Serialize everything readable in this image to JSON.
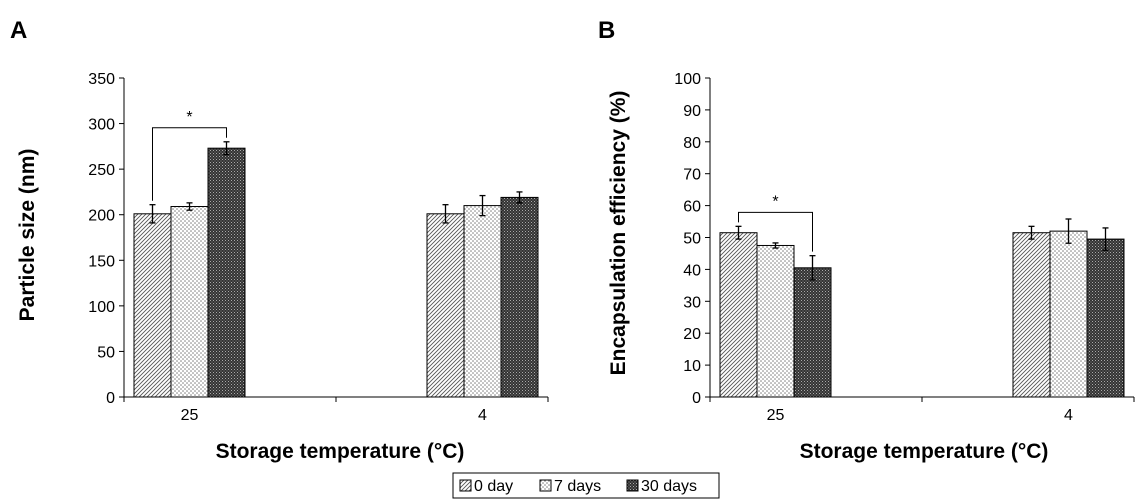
{
  "chart_data": [
    {
      "type": "bar",
      "panel": "A",
      "categories": [
        "25",
        "4"
      ],
      "series": [
        {
          "name": "0 day",
          "values": [
            201,
            201
          ],
          "errors": [
            10,
            10
          ]
        },
        {
          "name": "7 days",
          "values": [
            209,
            210
          ],
          "errors": [
            4,
            11
          ]
        },
        {
          "name": "30 days",
          "values": [
            273,
            219
          ],
          "errors": [
            7,
            6
          ]
        }
      ],
      "title": "",
      "xlabel": "Storage temperature (°C)",
      "ylabel": "Particle size (nm)",
      "ylim": [
        0,
        350
      ],
      "yticks": [
        "0",
        "50",
        "100",
        "150",
        "200",
        "250",
        "300",
        "350"
      ],
      "annotations": [
        {
          "text": "*",
          "between": "25: 0 day vs 30 days"
        }
      ],
      "grid": false
    },
    {
      "type": "bar",
      "panel": "B",
      "categories": [
        "25",
        "4"
      ],
      "series": [
        {
          "name": "0 day",
          "values": [
            51.5,
            51.5
          ],
          "errors": [
            2,
            2
          ]
        },
        {
          "name": "7 days",
          "values": [
            47.5,
            52
          ],
          "errors": [
            0.8,
            3.8
          ]
        },
        {
          "name": "30 days",
          "values": [
            40.5,
            49.5
          ],
          "errors": [
            3.8,
            3.5
          ]
        }
      ],
      "title": "",
      "xlabel": "Storage temperature (°C)",
      "ylabel": "Encapsulation efficiency (%)",
      "ylim": [
        0,
        100
      ],
      "yticks": [
        "0",
        "10",
        "20",
        "30",
        "40",
        "50",
        "60",
        "70",
        "80",
        "90",
        "100"
      ],
      "annotations": [
        {
          "text": "*",
          "between": "25: 0 day vs 30 days"
        }
      ],
      "grid": false
    }
  ],
  "legend": {
    "placement": "bottom-center",
    "items": [
      {
        "name": "0 day",
        "pattern": "diagonal-hatch"
      },
      {
        "name": "7 days",
        "pattern": "dots"
      },
      {
        "name": "30 days",
        "pattern": "dense-crosshatch"
      }
    ]
  },
  "colors": {
    "bar_edge": "#000000",
    "hatch": "#555555",
    "dots": "#777777",
    "dense": "#222222"
  }
}
